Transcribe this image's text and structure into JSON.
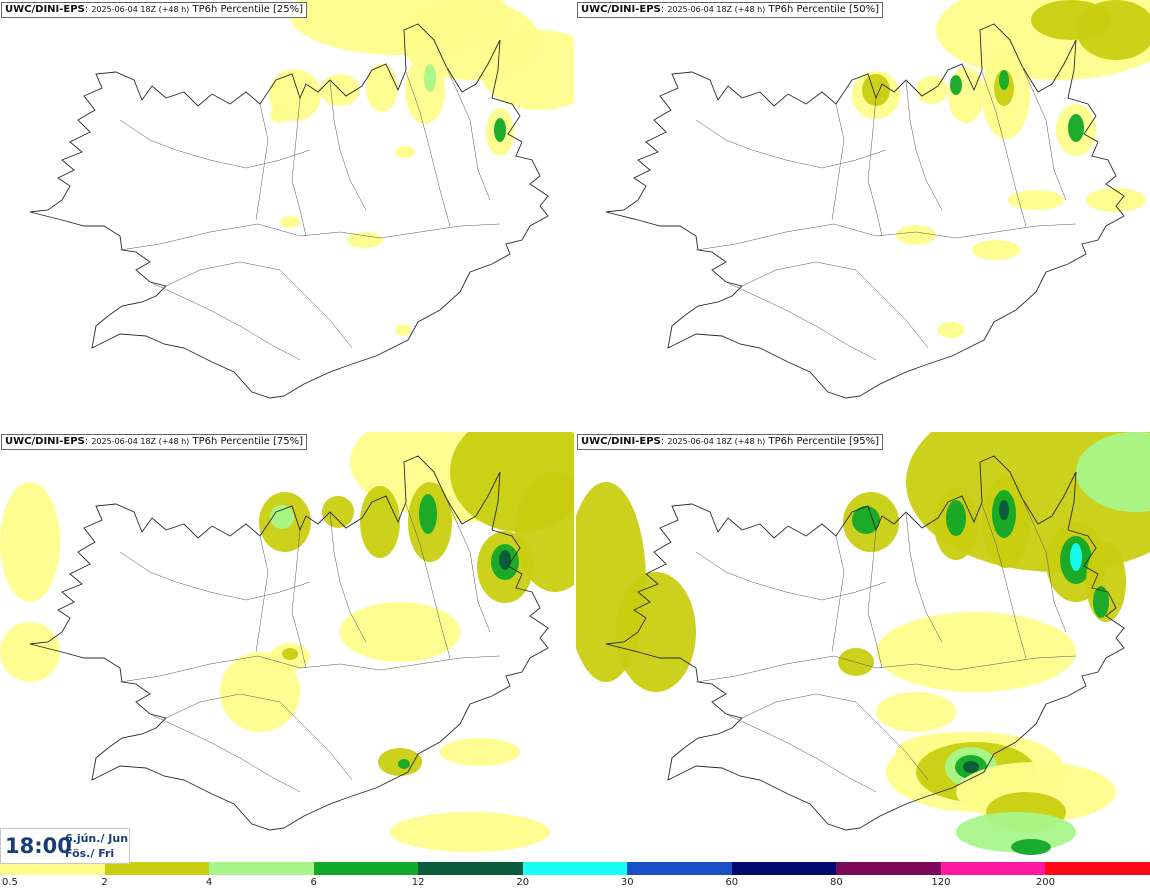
{
  "panels": [
    {
      "source": "UWC/DINI-EPS",
      "run": "2025-06-04 18Z (+48 h)",
      "product": "TP6h Percentile [25%]",
      "percentile": 25
    },
    {
      "source": "UWC/DINI-EPS",
      "run": "2025-06-04 18Z (+48 h)",
      "product": "TP6h Percentile [50%]",
      "percentile": 50
    },
    {
      "source": "UWC/DINI-EPS",
      "run": "2025-06-04 18Z (+48 h)",
      "product": "TP6h Percentile [75%]",
      "percentile": 75
    },
    {
      "source": "UWC/DINI-EPS",
      "run": "2025-06-04 18Z (+48 h)",
      "product": "TP6h Percentile [95%]",
      "percentile": 95
    }
  ],
  "valid_time": {
    "time": "18:00",
    "date_line1": "6.jún./ Jun",
    "date_line2": "Fös./ Fri"
  },
  "colorbar": {
    "levels": [
      "0.5",
      "2",
      "4",
      "6",
      "12",
      "20",
      "30",
      "60",
      "80",
      "120",
      "200"
    ],
    "colors": [
      "#fdfd8c",
      "#c8cf10",
      "#a8f58a",
      "#12a82a",
      "#0c5a3c",
      "#18fdf5",
      "#1a4fc8",
      "#000a6e",
      "#7c0a5a",
      "#ff18a0",
      "#ff0a14"
    ]
  }
}
